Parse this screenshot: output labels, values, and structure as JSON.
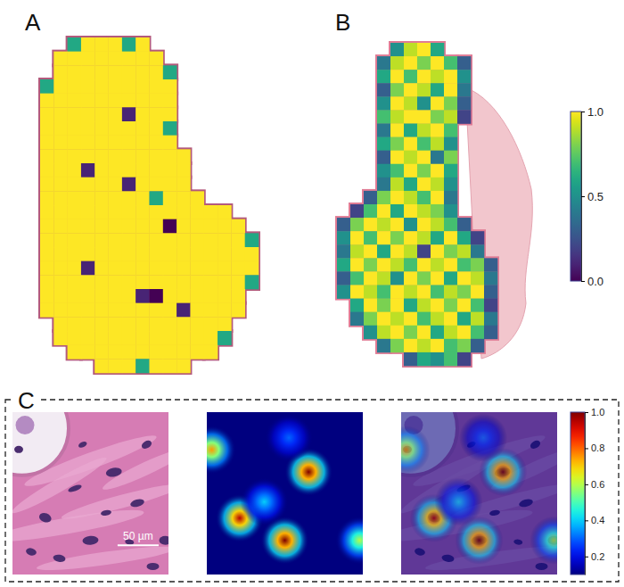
{
  "chart_data": [
    {
      "type": "heatmap",
      "title": "A",
      "cells": [
        [
          null,
          null,
          0.6,
          1,
          1,
          1,
          0.6,
          1,
          null,
          null,
          null,
          null,
          null,
          null,
          null,
          null
        ],
        [
          null,
          1,
          1,
          1,
          1,
          1,
          1,
          1,
          1,
          null,
          null,
          null,
          null,
          null,
          null,
          null
        ],
        [
          null,
          1,
          1,
          1,
          1,
          1,
          1,
          1,
          1,
          0.6,
          null,
          null,
          null,
          null,
          null,
          null
        ],
        [
          0.6,
          1,
          1,
          1,
          1,
          1,
          1,
          1,
          1,
          1,
          null,
          null,
          null,
          null,
          null,
          null
        ],
        [
          1,
          1,
          1,
          1,
          1,
          1,
          1,
          1,
          1,
          1,
          null,
          null,
          null,
          null,
          null,
          null
        ],
        [
          1,
          1,
          1,
          1,
          1,
          1,
          0.1,
          1,
          1,
          1,
          null,
          null,
          null,
          null,
          null,
          null
        ],
        [
          1,
          1,
          1,
          1,
          1,
          1,
          1,
          1,
          1,
          0.6,
          null,
          null,
          null,
          null,
          null,
          null
        ],
        [
          1,
          1,
          1,
          1,
          1,
          1,
          1,
          1,
          1,
          1,
          null,
          null,
          null,
          null,
          null,
          null
        ],
        [
          1,
          1,
          1,
          1,
          1,
          1,
          1,
          1,
          1,
          1,
          1,
          null,
          null,
          null,
          null,
          null
        ],
        [
          1,
          1,
          1,
          0.1,
          1,
          1,
          1,
          1,
          1,
          1,
          1,
          null,
          null,
          null,
          null,
          null
        ],
        [
          1,
          1,
          1,
          1,
          1,
          1,
          0.1,
          1,
          1,
          1,
          1,
          null,
          null,
          null,
          null,
          null
        ],
        [
          1,
          1,
          1,
          1,
          1,
          1,
          1,
          1,
          0.6,
          1,
          1,
          1,
          null,
          null,
          null,
          null
        ],
        [
          1,
          1,
          1,
          1,
          1,
          1,
          1,
          1,
          1,
          1,
          1,
          1,
          1,
          1,
          null,
          null
        ],
        [
          1,
          1,
          1,
          1,
          1,
          1,
          1,
          1,
          1,
          0,
          1,
          1,
          1,
          1,
          1,
          null
        ],
        [
          1,
          1,
          1,
          1,
          1,
          1,
          1,
          1,
          1,
          1,
          1,
          1,
          1,
          1,
          1,
          0.6
        ],
        [
          1,
          1,
          1,
          1,
          1,
          1,
          1,
          1,
          1,
          1,
          1,
          1,
          1,
          1,
          1,
          1
        ],
        [
          1,
          1,
          1,
          0.1,
          1,
          1,
          1,
          1,
          1,
          1,
          1,
          1,
          1,
          1,
          1,
          1
        ],
        [
          1,
          1,
          1,
          1,
          1,
          1,
          1,
          1,
          1,
          1,
          1,
          1,
          1,
          1,
          1,
          0.6
        ],
        [
          1,
          1,
          1,
          1,
          1,
          1,
          1,
          0.1,
          0,
          1,
          1,
          1,
          1,
          1,
          1,
          null
        ],
        [
          1,
          1,
          1,
          1,
          1,
          1,
          1,
          1,
          1,
          1,
          0.1,
          1,
          1,
          1,
          1,
          null
        ],
        [
          null,
          1,
          1,
          1,
          1,
          1,
          1,
          1,
          1,
          1,
          1,
          1,
          1,
          1,
          null,
          null
        ],
        [
          null,
          1,
          1,
          1,
          1,
          1,
          1,
          1,
          1,
          1,
          1,
          1,
          1,
          0.6,
          null,
          null
        ],
        [
          null,
          null,
          1,
          1,
          1,
          1,
          1,
          1,
          1,
          1,
          1,
          1,
          1,
          null,
          null,
          null
        ],
        [
          null,
          null,
          null,
          null,
          1,
          1,
          1,
          0.6,
          1,
          1,
          1,
          null,
          null,
          null,
          null,
          null
        ]
      ]
    },
    {
      "type": "heatmap",
      "title": "B",
      "cells": [
        [
          null,
          null,
          null,
          null,
          0.5,
          0.9,
          1.0,
          0.6,
          null,
          null,
          null,
          null
        ],
        [
          null,
          null,
          null,
          0.4,
          0.9,
          1.0,
          0.8,
          1.0,
          0.7,
          0.3,
          null,
          null
        ],
        [
          null,
          null,
          null,
          0.6,
          1.0,
          0.7,
          1.0,
          0.9,
          1.0,
          0.5,
          null,
          null
        ],
        [
          null,
          null,
          null,
          0.3,
          0.8,
          1.0,
          0.9,
          0.6,
          1.0,
          0.4,
          null,
          null
        ],
        [
          null,
          null,
          null,
          0.5,
          1.0,
          0.9,
          0.5,
          1.0,
          0.8,
          0.3,
          null,
          null
        ],
        [
          null,
          null,
          null,
          0.7,
          0.9,
          1.0,
          1.0,
          0.8,
          0.9,
          0.2,
          null,
          null
        ],
        [
          null,
          null,
          null,
          0.4,
          1.0,
          0.6,
          0.9,
          1.0,
          0.7,
          null,
          null,
          null
        ],
        [
          null,
          null,
          null,
          0.6,
          0.8,
          1.0,
          0.7,
          0.9,
          0.5,
          null,
          null,
          null
        ],
        [
          null,
          null,
          null,
          0.3,
          1.0,
          0.9,
          1.0,
          0.4,
          0.8,
          null,
          null,
          null
        ],
        [
          null,
          null,
          null,
          0.5,
          0.7,
          1.0,
          0.8,
          1.0,
          0.6,
          null,
          null,
          null
        ],
        [
          null,
          null,
          null,
          0.4,
          0.9,
          0.6,
          1.0,
          0.9,
          0.5,
          null,
          null,
          null
        ],
        [
          null,
          null,
          0.3,
          0.8,
          1.0,
          0.9,
          0.7,
          1.0,
          0.4,
          null,
          null,
          null
        ],
        [
          null,
          0.2,
          0.7,
          1.0,
          0.6,
          1.0,
          0.9,
          0.8,
          0.5,
          null,
          null,
          null
        ],
        [
          0.3,
          0.8,
          1.0,
          0.9,
          1.0,
          0.5,
          1.0,
          0.9,
          0.7,
          0.3,
          null,
          null
        ],
        [
          0.5,
          1.0,
          0.7,
          1.0,
          0.8,
          1.0,
          0.9,
          0.6,
          1.0,
          0.6,
          0.2,
          null
        ],
        [
          0.4,
          0.9,
          1.0,
          0.6,
          1.0,
          0.9,
          0.2,
          1.0,
          0.8,
          0.9,
          0.4,
          null
        ],
        [
          0.6,
          1.0,
          0.8,
          1.0,
          0.9,
          0.7,
          1.0,
          0.9,
          1.0,
          0.7,
          0.8,
          0.3
        ],
        [
          0.3,
          0.7,
          1.0,
          0.9,
          0.5,
          1.0,
          0.8,
          1.0,
          0.6,
          1.0,
          0.9,
          0.4
        ],
        [
          0.5,
          1.0,
          0.9,
          0.7,
          1.0,
          0.9,
          1.0,
          0.7,
          0.9,
          0.8,
          1.0,
          0.3
        ],
        [
          null,
          0.6,
          1.0,
          0.8,
          1.0,
          0.6,
          0.9,
          1.0,
          0.8,
          1.0,
          0.7,
          0.2
        ],
        [
          null,
          0.4,
          0.8,
          1.0,
          0.9,
          1.0,
          0.7,
          0.9,
          1.0,
          0.6,
          0.9,
          0.4
        ],
        [
          null,
          null,
          0.5,
          0.9,
          1.0,
          0.8,
          1.0,
          0.6,
          0.9,
          1.0,
          0.7,
          0.3
        ],
        [
          null,
          null,
          null,
          0.4,
          0.8,
          1.0,
          0.9,
          1.0,
          0.7,
          0.8,
          0.3,
          null
        ],
        [
          null,
          null,
          null,
          null,
          null,
          0.3,
          0.6,
          0.5,
          0.7,
          0.2,
          null,
          null
        ]
      ],
      "colorbar": {
        "range": [
          0,
          1
        ],
        "ticks": [
          {
            "value": 1,
            "label": "1.0"
          },
          {
            "value": 0.5,
            "label": "0.5"
          },
          {
            "value": 0,
            "label": "0.0"
          }
        ]
      }
    },
    {
      "type": "heatmap",
      "title": "C",
      "xlim": [
        0,
        190
      ],
      "ylim": [
        0,
        190
      ],
      "background": 0.1,
      "hotspots": [
        {
          "x": 124,
          "y": 70,
          "value": 1.0
        },
        {
          "x": 40,
          "y": 124,
          "value": 0.95
        },
        {
          "x": 95,
          "y": 150,
          "value": 1.0
        },
        {
          "x": 6,
          "y": 44,
          "value": 0.75
        },
        {
          "x": 186,
          "y": 150,
          "value": 0.6
        },
        {
          "x": 100,
          "y": 30,
          "value": 0.3
        },
        {
          "x": 70,
          "y": 105,
          "value": 0.4
        }
      ],
      "scale_bar": {
        "value": 50,
        "label": "50 µm"
      },
      "colorbar": {
        "range": [
          0.1,
          1.0
        ],
        "ticks": [
          {
            "value": 0.2,
            "label": "0.2"
          },
          {
            "value": 0.4,
            "label": "0.4"
          },
          {
            "value": 0.6,
            "label": "0.6"
          },
          {
            "value": 0.8,
            "label": "0.8"
          },
          {
            "value": 1.0,
            "label": "1.0"
          }
        ]
      }
    }
  ]
}
